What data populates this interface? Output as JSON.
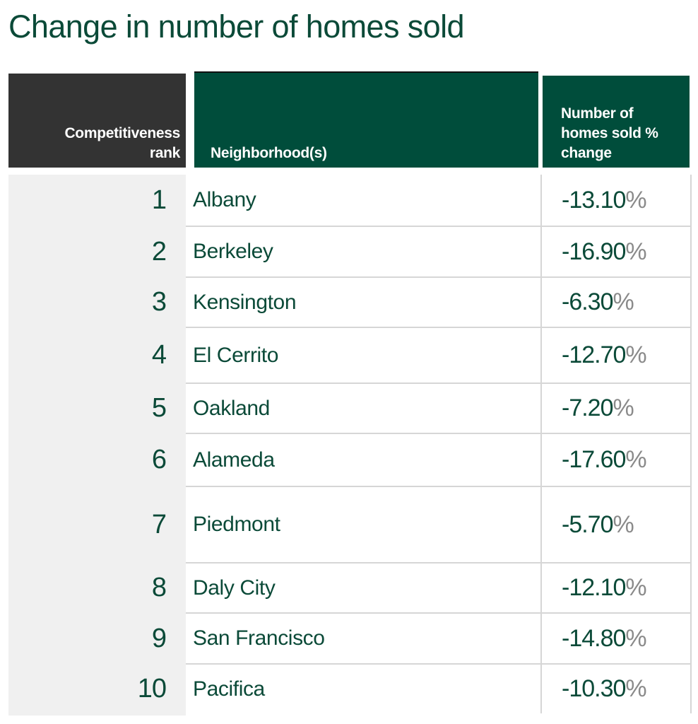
{
  "title": "Change in number of homes sold",
  "headers": {
    "rank": [
      "Competitiveness",
      "rank"
    ],
    "neighborhood": "Neighborhood(s)",
    "change": [
      "Number of",
      "homes sold %",
      "change"
    ]
  },
  "chart_data": {
    "type": "table",
    "title": "Change in number of homes sold",
    "columns": [
      "Competitiveness rank",
      "Neighborhood(s)",
      "Number of homes sold % change"
    ],
    "rows": [
      {
        "rank": "1",
        "neighborhood": "Albany",
        "change": "-13.10",
        "unit": "%"
      },
      {
        "rank": "2",
        "neighborhood": "Berkeley",
        "change": "-16.90",
        "unit": "%"
      },
      {
        "rank": "3",
        "neighborhood": "Kensington",
        "change": "-6.30",
        "unit": "%"
      },
      {
        "rank": "4",
        "neighborhood": "El Cerrito",
        "change": "-12.70",
        "unit": "%"
      },
      {
        "rank": "5",
        "neighborhood": "Oakland",
        "change": "-7.20",
        "unit": "%"
      },
      {
        "rank": "6",
        "neighborhood": "Alameda",
        "change": "-17.60",
        "unit": "%"
      },
      {
        "rank": "7",
        "neighborhood": "Piedmont",
        "change": "-5.70",
        "unit": "%"
      },
      {
        "rank": "8",
        "neighborhood": "Daly City",
        "change": "-12.10",
        "unit": "%"
      },
      {
        "rank": "9",
        "neighborhood": "San Francisco",
        "change": "-14.80",
        "unit": "%"
      },
      {
        "rank": "10",
        "neighborhood": "Pacifica",
        "change": "-10.30",
        "unit": "%"
      }
    ]
  }
}
